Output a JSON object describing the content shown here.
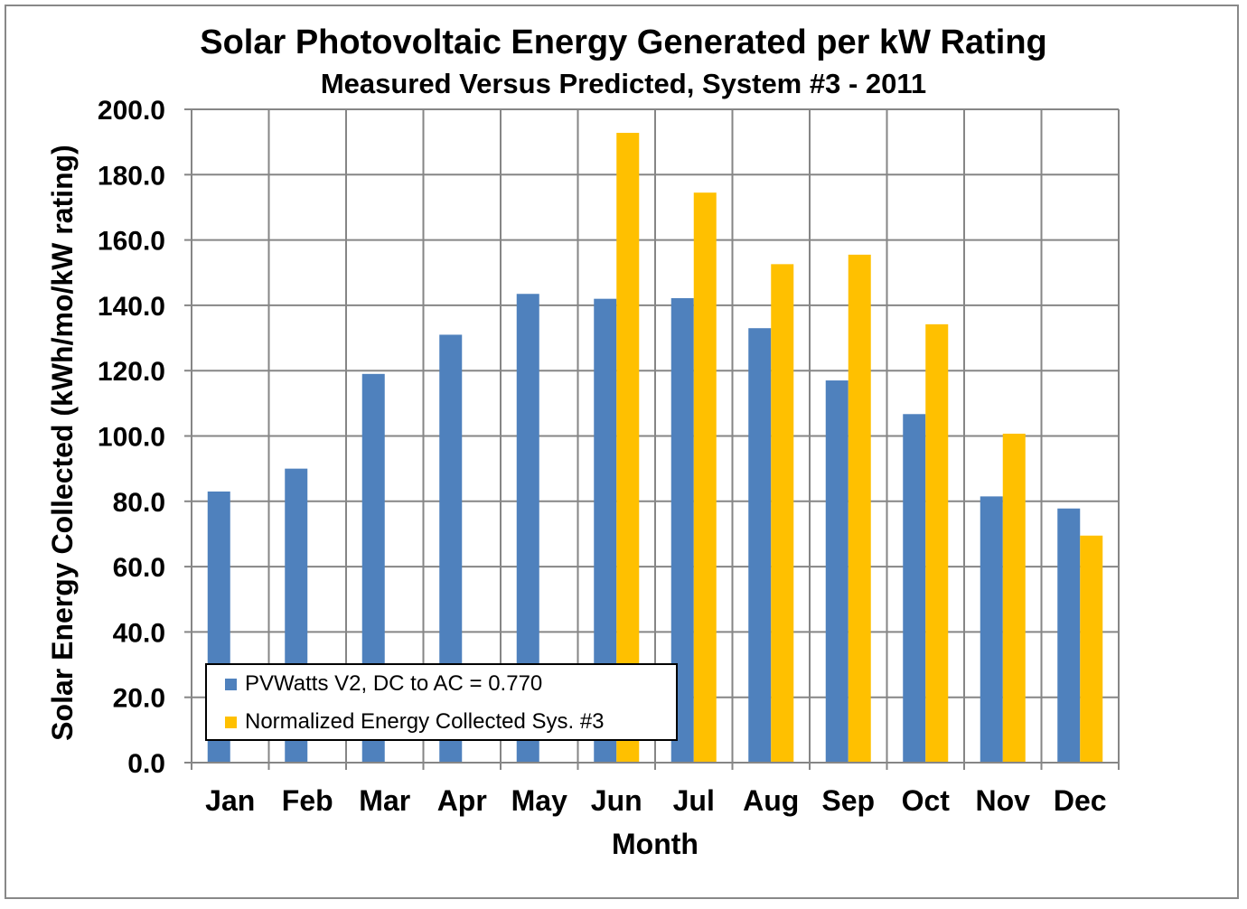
{
  "chart_data": {
    "type": "bar",
    "title": "Solar Photovoltaic Energy Generated per kW Rating",
    "subtitle": "Measured Versus Predicted, System #3 - 2011",
    "xlabel": "Month",
    "ylabel": "Solar Energy Collected (kWh/mo/kW rating)",
    "categories": [
      "Jan",
      "Feb",
      "Mar",
      "Apr",
      "May",
      "Jun",
      "Jul",
      "Aug",
      "Sep",
      "Oct",
      "Nov",
      "Dec"
    ],
    "ylim": [
      0,
      200
    ],
    "yticks": [
      "0.0",
      "20.0",
      "40.0",
      "60.0",
      "80.0",
      "100.0",
      "120.0",
      "140.0",
      "160.0",
      "180.0",
      "200.0"
    ],
    "grid": true,
    "legend_position": "bottom-left",
    "series": [
      {
        "name": "PVWatts V2, DC to AC = 0.770",
        "color": "#4f81bd",
        "values": [
          83,
          90,
          119,
          131,
          143.5,
          142,
          142.2,
          133,
          117,
          106.7,
          81.5,
          77.8
        ]
      },
      {
        "name": "Normalized Energy Collected Sys. #3",
        "color": "#ffc000",
        "values": [
          null,
          null,
          null,
          null,
          null,
          192.8,
          174.5,
          152.6,
          155.5,
          134.2,
          100.7,
          69.5
        ]
      }
    ]
  }
}
